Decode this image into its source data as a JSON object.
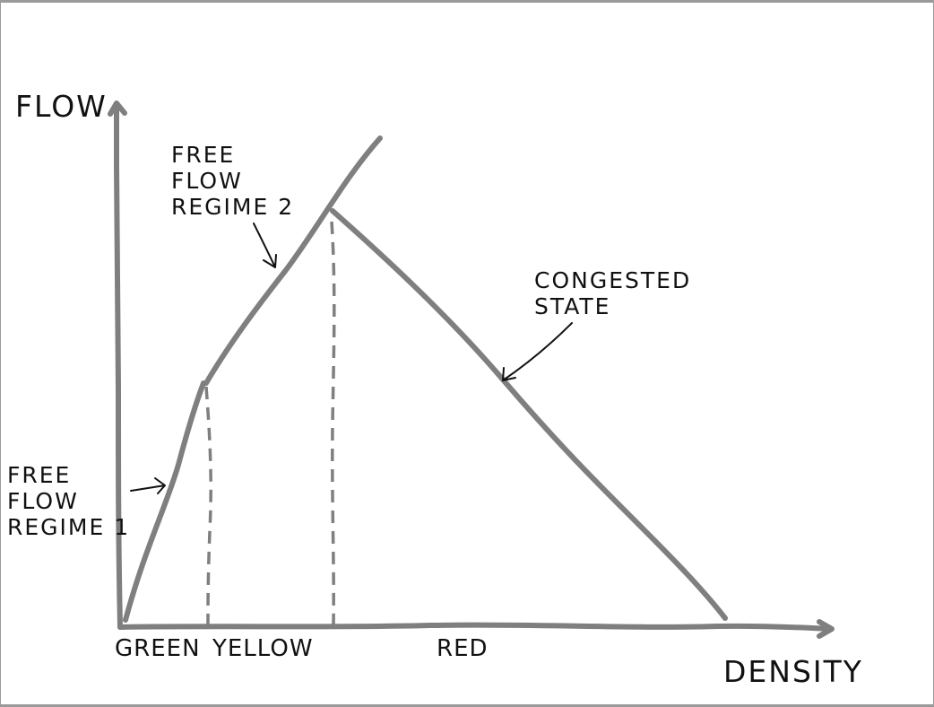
{
  "diagram": {
    "y_axis_label": "FLOW",
    "x_axis_label": "DENSITY",
    "annotations": {
      "regime_1": "FREE\nFLOW\nREGIME 1",
      "regime_2": "FREE\nFLOW\nREGIME 2",
      "congested": "CONGESTED\nSTATE"
    },
    "zones": [
      "GREEN",
      "YELLOW",
      "RED"
    ],
    "line_color": "#7f7f7f",
    "text_color": "#111111"
  }
}
